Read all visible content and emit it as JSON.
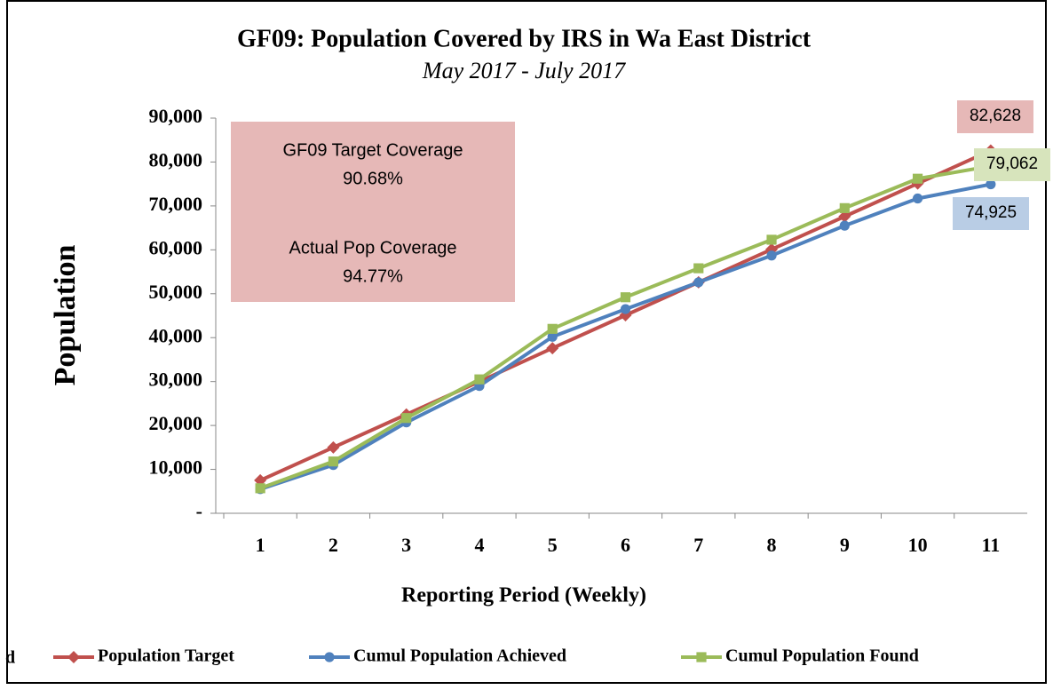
{
  "chart_data": {
    "type": "line",
    "title": "GF09: Population Covered by IRS in Wa East District",
    "subtitle": "May 2017 - July 2017",
    "x_label": "Reporting Period (Weekly)",
    "y_label": "Population",
    "categories": [
      "1",
      "2",
      "3",
      "4",
      "5",
      "6",
      "7",
      "8",
      "9",
      "10",
      "11"
    ],
    "series": [
      {
        "name": "Population Target",
        "color": "#c0504d",
        "marker": "diamond",
        "values": [
          7500,
          15000,
          22500,
          30000,
          37600,
          45100,
          52600,
          60100,
          67600,
          75100,
          82628
        ],
        "value_labels": [
          null,
          null,
          null,
          null,
          null,
          null,
          null,
          null,
          null,
          null,
          "82,628"
        ],
        "label_color": "#e6b8b7"
      },
      {
        "name": "Cumul Population Achieved",
        "color": "#4f81bd",
        "marker": "circle",
        "values": [
          5500,
          11000,
          20700,
          29000,
          40200,
          46500,
          52600,
          58700,
          65500,
          71700,
          74925
        ],
        "value_labels": [
          null,
          null,
          null,
          null,
          null,
          null,
          null,
          null,
          null,
          null,
          "74,925"
        ],
        "label_color": "#b9cde5"
      },
      {
        "name": "Cumul Population Found",
        "color": "#9bbb59",
        "marker": "square",
        "values": [
          5700,
          11800,
          21700,
          30500,
          42000,
          49200,
          55800,
          62300,
          69500,
          76200,
          79062
        ],
        "value_labels": [
          null,
          null,
          null,
          null,
          null,
          null,
          null,
          null,
          null,
          null,
          "79,062"
        ],
        "label_color": "#d7e4bc"
      }
    ],
    "ylim": [
      0,
      90000
    ],
    "yticks": [
      {
        "value": 0,
        "label": "-"
      },
      {
        "value": 10000,
        "label": "10,000"
      },
      {
        "value": 20000,
        "label": "20,000"
      },
      {
        "value": 30000,
        "label": "30,000"
      },
      {
        "value": 40000,
        "label": "40,000"
      },
      {
        "value": 50000,
        "label": "50,000"
      },
      {
        "value": 60000,
        "label": "60,000"
      },
      {
        "value": 70000,
        "label": "70,000"
      },
      {
        "value": 80000,
        "label": "80,000"
      },
      {
        "value": 90000,
        "label": "90,000"
      }
    ],
    "grid": false,
    "legend": "bottom",
    "annotation": {
      "lines": [
        "GF09 Target Coverage",
        "90.68%",
        "Actual Pop Coverage",
        "94.77%"
      ],
      "color": "#e6b8b7"
    },
    "fragment_text": "d"
  }
}
